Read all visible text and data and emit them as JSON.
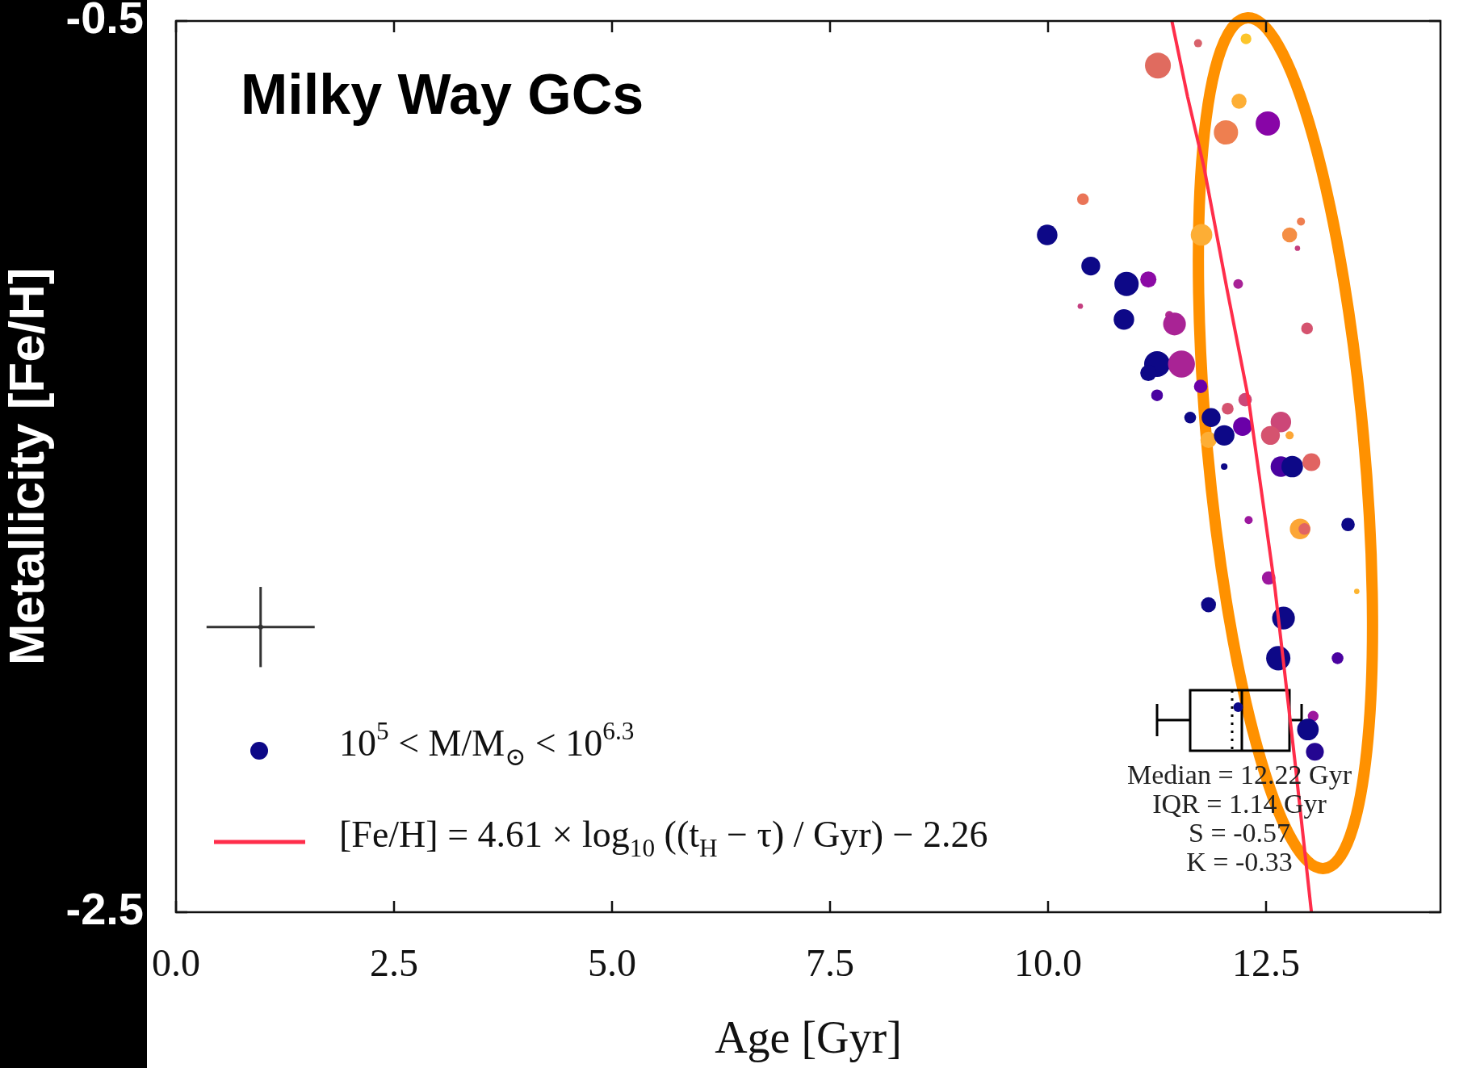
{
  "chart_data": {
    "type": "bubble",
    "title": "Milky Way GCs",
    "xlabel": "Age [Gyr]",
    "ylabel": "Metallicity [Fe/H]",
    "xlim": [
      0,
      14.5
    ],
    "xticks": [
      {
        "value": 0,
        "label": "0.0"
      },
      2.5,
      {
        "value": 5,
        "label": "5.0"
      },
      7.5,
      {
        "value": 10,
        "label": "10.0"
      },
      12.5
    ],
    "ylim": [
      -2.5,
      -0.5
    ],
    "yticks": [
      -0.5,
      -2.5
    ],
    "legend": "bottom left",
    "annotations": [
      "Median = 12.22 Gyr",
      "IQR = 1.14 Gyr",
      "S = -0.57",
      "K = -0.33"
    ],
    "series": [
      {
        "name": "10$^{5}$ < M/M$_{⊙}$ < 10$^{6.3}$",
        "color": "#0d0887",
        "x": [
          12.27,
          11.72,
          11.26,
          12.19,
          12.52,
          12.04,
          10.4,
          9.99,
          11.76,
          12.77,
          12.9,
          12.86,
          10.49,
          10.9,
          11.15,
          10.37,
          12.18,
          10.87,
          11.39,
          11.45,
          12.97,
          11.25,
          11.15,
          11.53,
          11.25,
          11.75,
          12.26,
          12.06,
          11.63,
          11.87,
          11.84,
          12.02,
          12.23,
          12.67,
          12.55,
          12.77,
          12.02,
          12.67,
          12.8,
          13.02,
          12.3,
          12.89,
          12.94,
          13.44,
          12.53,
          11.84,
          12.7,
          12.64,
          13.32,
          13.54,
          12.18,
          13.04,
          12.98,
          13.06
        ],
        "values": [
          -0.54,
          -0.55,
          -0.6,
          -0.68,
          -0.73,
          -0.75,
          -0.9,
          -0.98,
          -0.98,
          -0.98,
          -0.95,
          -1.01,
          -1.05,
          -1.09,
          -1.08,
          -1.14,
          -1.09,
          -1.17,
          -1.16,
          -1.18,
          -1.19,
          -1.27,
          -1.29,
          -1.27,
          -1.34,
          -1.32,
          -1.35,
          -1.37,
          -1.39,
          -1.39,
          -1.44,
          -1.43,
          -1.41,
          -1.4,
          -1.43,
          -1.43,
          -1.5,
          -1.5,
          -1.5,
          -1.49,
          -1.62,
          -1.64,
          -1.64,
          -1.63,
          -1.75,
          -1.81,
          -1.84,
          -1.93,
          -1.93,
          -1.78,
          -2.04,
          -2.06,
          -2.09,
          -2.14
        ],
        "sizes": [
          0.16,
          0.09,
          0.92,
          0.31,
          0.81,
          0.81,
          0.19,
          0.58,
          0.64,
          0.31,
          0.09,
          0.04,
          0.49,
          0.81,
          0.36,
          0.04,
          0.13,
          0.58,
          0.09,
          0.71,
          0.19,
          0.92,
          0.36,
          1,
          0.19,
          0.25,
          0.25,
          0.19,
          0.19,
          0.49,
          0.36,
          0.58,
          0.49,
          0.58,
          0.49,
          0.09,
          0.06,
          0.58,
          0.64,
          0.44,
          0.09,
          0.58,
          0.19,
          0.25,
          0.25,
          0.31,
          0.71,
          0.81,
          0.19,
          0.04,
          0.13,
          0.16,
          0.64,
          0.44
        ],
        "colors": [
          "#fcc52a",
          "#d8626b",
          "#e06b5f",
          "#fdae35",
          "#8805a7",
          "#ee7f50",
          "#ea7457",
          "#0d0887",
          "#fdae35",
          "#f48e44",
          "#ef7e50",
          "#c43e7f",
          "#0d0887",
          "#0d0887",
          "#8b0aa5",
          "#c43e7f",
          "#a82296",
          "#0d0887",
          "#b12a90",
          "#a92395",
          "#d5536f",
          "#0d0887",
          "#0d0887",
          "#a92395",
          "#4a02a0",
          "#6a00a8",
          "#cc4778",
          "#d5536f",
          "#0d0887",
          "#0d0887",
          "#fdae35",
          "#0d0887",
          "#6a00a8",
          "#cc4778",
          "#d5536f",
          "#fca636",
          "#0d0887",
          "#4a02a0",
          "#0d0887",
          "#e16462",
          "#9c179e",
          "#fca636",
          "#e16462",
          "#0d0887",
          "#9c179e",
          "#0d0887",
          "#0d0887",
          "#0d0887",
          "#4a02a0",
          "#fdb42f",
          "#0d0887",
          "#9c179e",
          "#0d0887",
          "#240691"
        ]
      },
      {
        "type": "line",
        "name": "[Fe/H] = 4.61 × log$_{10}$ ((t$_{H}$ − τ) / Gyr) − 2.26",
        "color": "#ff2d4a",
        "x": [
          11.42,
          11.6,
          11.79,
          12.05,
          12.3,
          12.6,
          12.83,
          13.02
        ],
        "values": [
          -0.5,
          -0.67,
          -0.83,
          -1.1,
          -1.35,
          -1.77,
          -2.16,
          -2.5
        ]
      },
      {
        "type": "scatter",
        "color": "#333333",
        "x": [
          0.97
        ],
        "values": [
          -1.86
        ],
        "errors": [
          0.09
        ],
        "xerrors": [
          0.62
        ]
      }
    ]
  }
}
